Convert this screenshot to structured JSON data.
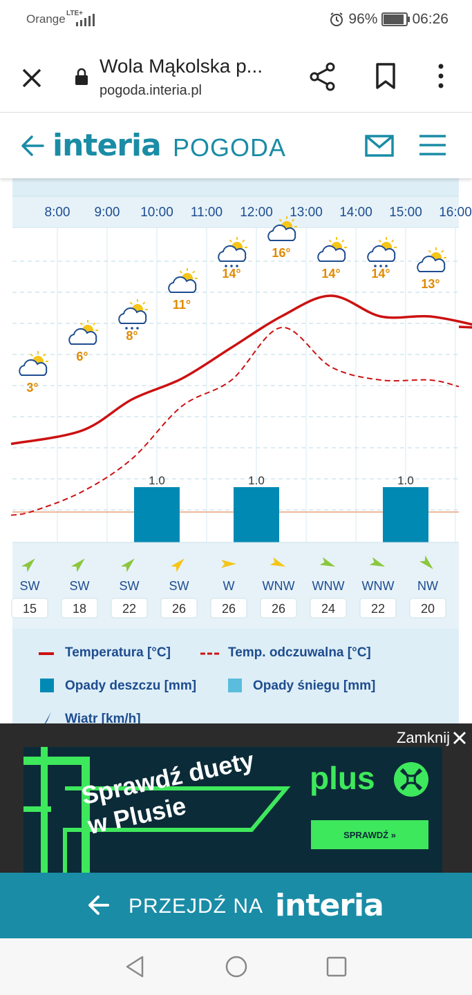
{
  "status_bar": {
    "carrier": "Orange",
    "network": "LTE+",
    "battery": "96%",
    "battery_level": 0.96,
    "time": "06:26"
  },
  "browser": {
    "title": "Wola Mąkolska p...",
    "url": "pogoda.interia.pl"
  },
  "site": {
    "logo": "interia",
    "section": "POGODA"
  },
  "chart_data": {
    "type": "line",
    "categories": [
      "8:00",
      "9:00",
      "10:00",
      "11:00",
      "12:00",
      "13:00",
      "14:00",
      "15:00",
      "16:00"
    ],
    "series": [
      {
        "name": "Temperatura [°C]",
        "values": [
          3,
          6,
          8,
          11,
          14,
          16,
          14,
          14,
          13
        ],
        "color": "#cc1111"
      },
      {
        "name": "Temp. odczuwalna [°C]",
        "values": [
          0,
          1.5,
          4,
          8,
          10,
          14,
          11,
          10,
          10
        ],
        "color": "#cc1111",
        "dash": true
      },
      {
        "name": "Opady deszczu [mm]",
        "values": [
          null,
          null,
          1.0,
          null,
          1.0,
          null,
          null,
          1.0,
          null
        ],
        "color": "#0089b3"
      }
    ],
    "temp_labels": [
      "3°",
      "6°",
      "8°",
      "11°",
      "14°",
      "16°",
      "14°",
      "14°",
      "13°"
    ],
    "precip_labels": [
      "",
      "",
      "1.0",
      "",
      "1.0",
      "",
      "",
      "1.0",
      ""
    ],
    "weather_icons": [
      "sun-cloud-icon",
      "sun-cloud-icon",
      "sun-rain-icon",
      "sun-cloud-icon",
      "sun-rain-icon",
      "sun-cloud-icon",
      "sun-cloud-icon",
      "sun-rain-icon",
      "sun-cloud-icon"
    ],
    "wind": {
      "directions": [
        "SW",
        "SW",
        "SW",
        "SW",
        "W",
        "WNW",
        "WNW",
        "WNW",
        "NW"
      ],
      "speeds": [
        "15",
        "18",
        "22",
        "26",
        "26",
        "26",
        "24",
        "22",
        "20"
      ],
      "colors": [
        "#8cc63f",
        "#8cc63f",
        "#8cc63f",
        "#f5c518",
        "#f5c518",
        "#f5c518",
        "#8cc63f",
        "#8cc63f",
        "#8cc63f"
      ]
    },
    "ylim": [
      -2,
      20
    ],
    "grid": true
  },
  "legend": {
    "temp": "Temperatura [°C]",
    "feels": "Temp. odczuwalna [°C]",
    "rain": "Opady deszczu [mm]",
    "snow": "Opady śniegu [mm]",
    "wind": "Wiatr [km/h]"
  },
  "ad": {
    "close_label": "Zamknij",
    "headline_1": "Sprawdź duety",
    "headline_2": "w Plusie",
    "brand": "plus",
    "cta": "SPRAWDŹ »"
  },
  "bottom_bar": {
    "label": "PRZEJDŹ NA",
    "logo": "interia"
  },
  "colors": {
    "brand": "#1a8ca6",
    "rain": "#0089b3",
    "snow": "#5bbcdd",
    "temp": "#cc1111",
    "chart_bg": "#ddeef6"
  }
}
